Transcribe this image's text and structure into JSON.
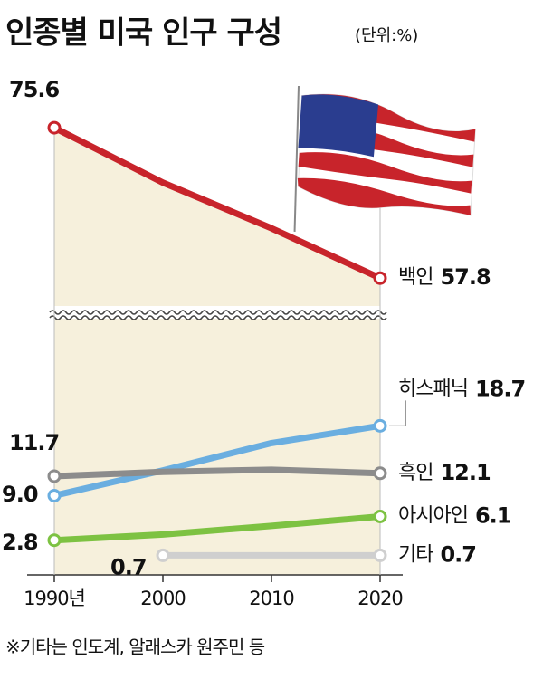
{
  "chart_data": {
    "type": "line",
    "title": "인종별 미국 인구 구성",
    "subtitle": "(단위:%)",
    "note": "※기타는 인도계, 알래스카 원주민 등",
    "categories": [
      "1990년",
      "2000",
      "2010",
      "2020"
    ],
    "ylim": [
      0,
      20
    ],
    "y2lim": [
      50,
      80
    ],
    "series": [
      {
        "name": "백인",
        "color": "#c8242b",
        "axis": "y2",
        "values": [
          75.6,
          69.1,
          63.7,
          57.8
        ],
        "value_labels": [
          "75.6",
          null,
          null,
          "57.8"
        ]
      },
      {
        "name": "히스패닉",
        "color": "#6aaee0",
        "values": [
          9.0,
          12.5,
          16.3,
          18.7
        ],
        "value_labels": [
          "9.0",
          null,
          null,
          "18.7"
        ]
      },
      {
        "name": "흑인",
        "color": "#8c8c8c",
        "values": [
          11.7,
          12.3,
          12.6,
          12.1
        ],
        "value_labels": [
          "11.7",
          null,
          null,
          "12.1"
        ]
      },
      {
        "name": "아시아인",
        "color": "#7dc242",
        "values": [
          2.8,
          3.6,
          4.8,
          6.1
        ],
        "value_labels": [
          "2.8",
          null,
          null,
          "6.1"
        ]
      },
      {
        "name": "기타",
        "color": "#cfcfcf",
        "values": [
          null,
          0.7,
          0.7,
          0.7
        ],
        "value_labels": [
          null,
          "0.7",
          null,
          "0.7"
        ]
      }
    ]
  }
}
